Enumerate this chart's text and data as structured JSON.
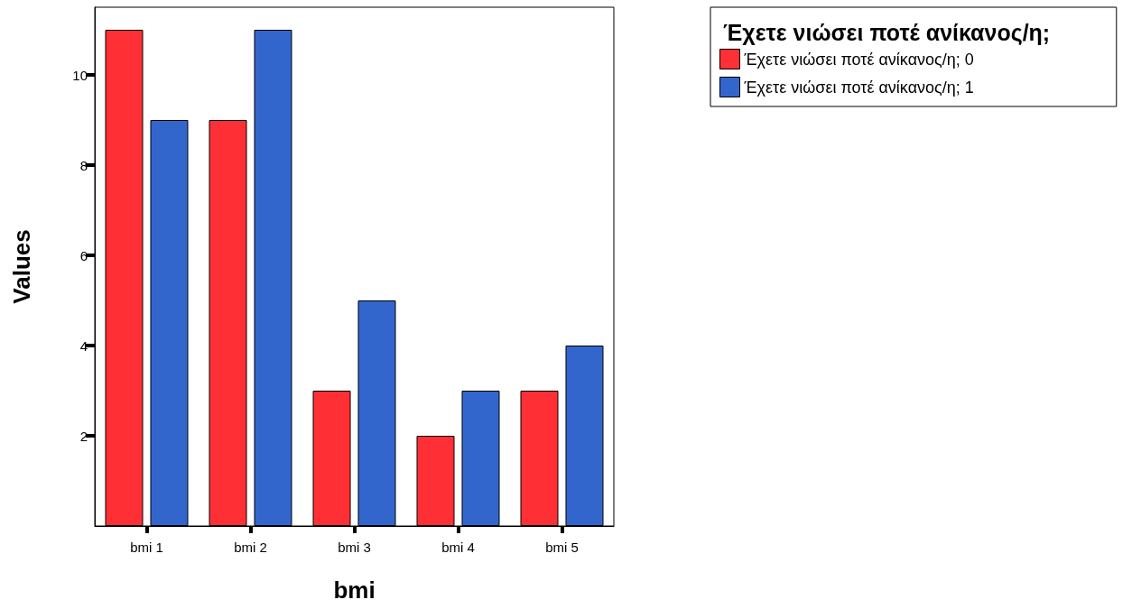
{
  "chart_data": {
    "type": "bar",
    "xlabel": "bmi",
    "ylabel": "Values",
    "legend_title": "Έχετε νιώσει ποτέ ανίκανος/η;",
    "categories": [
      "bmi 1",
      "bmi 2",
      "bmi 3",
      "bmi 4",
      "bmi 5"
    ],
    "series": [
      {
        "name": "Έχετε νιώσει ποτέ ανίκανος/η; 0",
        "color": "#ff3035",
        "values": [
          11,
          9,
          3,
          2,
          3
        ]
      },
      {
        "name": "Έχετε νιώσει ποτέ ανίκανος/η; 1",
        "color": "#3366cc",
        "values": [
          9,
          11,
          5,
          3,
          4
        ]
      }
    ],
    "ylim": [
      0,
      11.5
    ],
    "yticks": [
      2,
      4,
      6,
      8,
      10
    ],
    "grid": false,
    "legend": "top right"
  }
}
